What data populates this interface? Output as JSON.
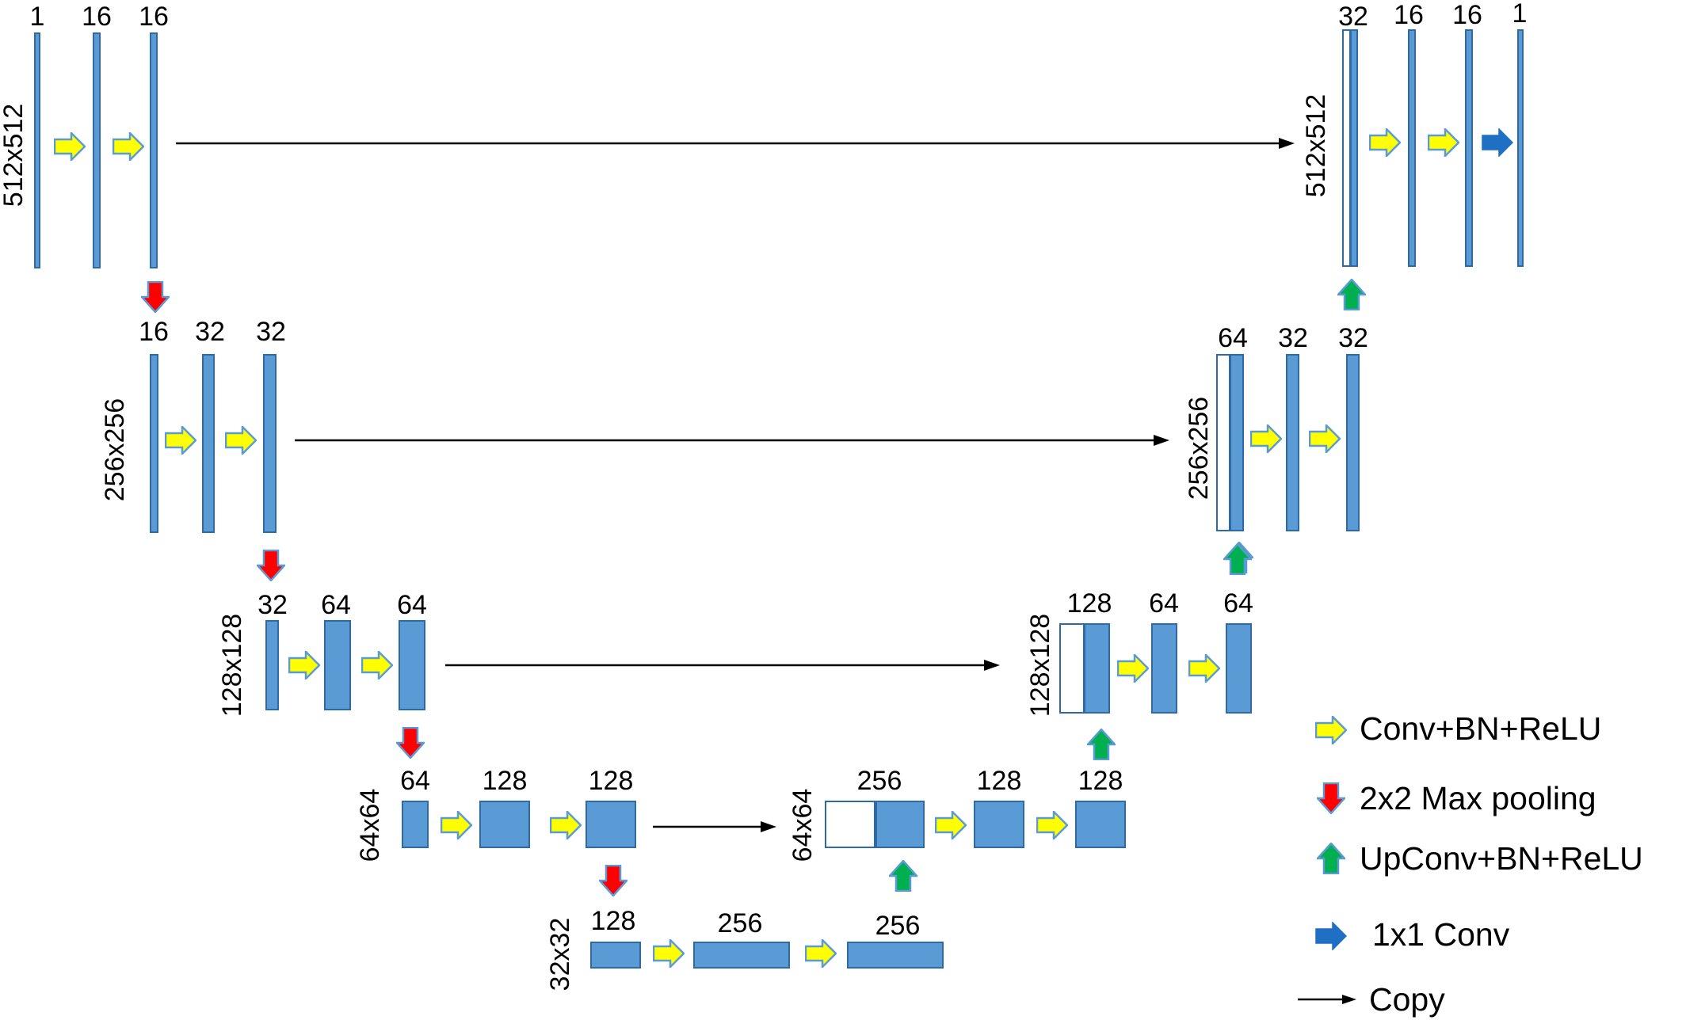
{
  "encoder": {
    "level1": {
      "resolution": "512x512",
      "channels": [
        "1",
        "16",
        "16"
      ]
    },
    "level2": {
      "resolution": "256x256",
      "channels": [
        "16",
        "32",
        "32"
      ]
    },
    "level3": {
      "resolution": "128x128",
      "channels": [
        "32",
        "64",
        "64"
      ]
    },
    "level4": {
      "resolution": "64x64",
      "channels": [
        "64",
        "128",
        "128"
      ]
    }
  },
  "bottleneck": {
    "resolution": "32x32",
    "channels": [
      "128",
      "256",
      "256"
    ]
  },
  "decoder": {
    "level4": {
      "resolution": "64x64",
      "channels": [
        "256",
        "128",
        "128"
      ]
    },
    "level3": {
      "resolution": "128x128",
      "channels": [
        "128",
        "64",
        "64"
      ]
    },
    "level2": {
      "resolution": "256x256",
      "channels": [
        "64",
        "32",
        "32"
      ]
    },
    "level1": {
      "resolution": "512x512",
      "channels": [
        "32",
        "16",
        "16",
        "1"
      ]
    }
  },
  "legend": {
    "conv": "Conv+BN+ReLU",
    "pool": "2x2 Max pooling",
    "upconv": "UpConv+BN+ReLU",
    "conv1x1": "1x1 Conv",
    "copy": "Copy"
  },
  "colors": {
    "feature_map": "#5b9bd5",
    "conv_arrow": "#ffff00",
    "pool_arrow": "#ff0000",
    "upconv_arrow": "#00b050",
    "conv1x1_arrow": "#1f6fc4"
  },
  "icons": {
    "conv": "yellow-right-arrow",
    "pool": "red-down-arrow",
    "upconv": "green-up-arrow",
    "conv1x1": "blue-right-arrow",
    "copy": "thin-black-arrow"
  }
}
